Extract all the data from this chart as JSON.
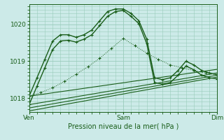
{
  "background_color": "#cceae8",
  "plot_bg": "#cceae8",
  "grid_color": "#99ccbb",
  "line_color": "#1a5e1a",
  "ylim": [
    1017.62,
    1020.55
  ],
  "yticks": [
    1018,
    1019,
    1020
  ],
  "xlim": [
    0,
    48
  ],
  "xtick_labels": [
    "Ven",
    "Sam",
    "Dim"
  ],
  "xtick_pos": [
    0,
    24,
    48
  ],
  "xlabel": "Pression niveau de la mer( hPa )",
  "trend_lines": [
    {
      "x": [
        0,
        48
      ],
      "y": [
        1018.05,
        1018.78
      ]
    },
    {
      "x": [
        0,
        48
      ],
      "y": [
        1017.82,
        1018.68
      ]
    },
    {
      "x": [
        0,
        48
      ],
      "y": [
        1017.73,
        1018.62
      ]
    },
    {
      "x": [
        0,
        48
      ],
      "y": [
        1017.65,
        1018.57
      ]
    }
  ],
  "main_series_1": {
    "x": [
      0,
      2,
      4,
      6,
      8,
      10,
      12,
      14,
      16,
      18,
      20,
      22,
      24,
      26,
      28,
      30,
      32,
      34,
      36,
      38,
      40,
      42,
      44,
      46,
      48
    ],
    "y": [
      1018.05,
      1018.55,
      1019.05,
      1019.55,
      1019.72,
      1019.72,
      1019.65,
      1019.72,
      1019.85,
      1020.1,
      1020.35,
      1020.42,
      1020.42,
      1020.3,
      1020.1,
      1019.6,
      1018.55,
      1018.5,
      1018.55,
      1018.75,
      1019.0,
      1018.9,
      1018.75,
      1018.68,
      1018.63
    ]
  },
  "main_series_2": {
    "x": [
      0,
      2,
      4,
      6,
      8,
      10,
      12,
      14,
      16,
      18,
      20,
      22,
      24,
      26,
      28,
      30,
      32,
      34,
      36,
      38,
      40,
      42,
      44,
      46,
      48
    ],
    "y": [
      1017.82,
      1018.32,
      1018.82,
      1019.32,
      1019.55,
      1019.57,
      1019.52,
      1019.6,
      1019.72,
      1019.97,
      1020.22,
      1020.35,
      1020.38,
      1020.22,
      1020.02,
      1019.48,
      1018.42,
      1018.38,
      1018.42,
      1018.62,
      1018.87,
      1018.77,
      1018.62,
      1018.55,
      1018.52
    ]
  },
  "dotted_series": {
    "x": [
      0,
      3,
      6,
      9,
      12,
      15,
      18,
      21,
      24,
      27,
      30,
      33,
      36,
      39,
      42,
      45,
      48
    ],
    "y": [
      1018.05,
      1018.15,
      1018.28,
      1018.45,
      1018.65,
      1018.85,
      1019.08,
      1019.35,
      1019.62,
      1019.42,
      1019.22,
      1019.05,
      1018.9,
      1018.82,
      1018.75,
      1018.68,
      1018.63
    ]
  }
}
